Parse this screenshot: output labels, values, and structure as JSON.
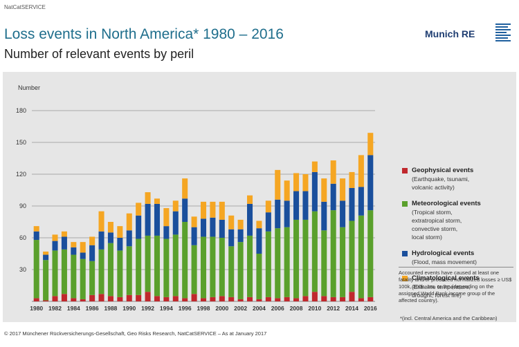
{
  "header": {
    "source_tag": "NatCatSERVICE",
    "title": "Loss events in North America* 1980 – 2016",
    "subtitle": "Number of relevant events by peril"
  },
  "logo": {
    "text": "Munich RE"
  },
  "legend": [
    {
      "name": "Geophysical events",
      "desc": "(Earthquake, tsunami,\nvolcanic activity)",
      "color": "#c0282d"
    },
    {
      "name": "Meteorological events",
      "desc": "(Tropical storm,\nextratropical storm,\nconvective storm,\nlocal storm)",
      "color": "#5aa02c"
    },
    {
      "name": "Hydrological events",
      "desc": "(Flood, mass movement)",
      "color": "#1a4f9c"
    },
    {
      "name": "Climatological events",
      "desc": "(Extreme temperature,\ndrought, forest fire)",
      "color": "#f5a623"
    }
  ],
  "note": "Accounted events have caused at least one fatality and/or produced normalized losses ≥ US$ 100k, 300k, 1m, or 3m (depending on the assigned World Bank income group of the affected country).",
  "footnote": "*(incl. Central America and the Caribbean)",
  "footer": {
    "copyright": "© 2017 Münchener Rückversicherungs-Gesellschaft, Geo Risks Research, NatCatSERVICE – As at January 2017"
  },
  "chart_data": {
    "type": "bar",
    "stacked": true,
    "ylabel": "Number",
    "ylim": [
      0,
      180
    ],
    "yticks": [
      30,
      60,
      90,
      120,
      150,
      180
    ],
    "grid": true,
    "categories": [
      "1980",
      "1981",
      "1982",
      "1983",
      "1984",
      "1985",
      "1986",
      "1987",
      "1988",
      "1989",
      "1990",
      "1991",
      "1992",
      "1993",
      "1994",
      "1995",
      "1996",
      "1997",
      "1998",
      "1999",
      "2000",
      "2001",
      "2002",
      "2003",
      "2004",
      "2005",
      "2006",
      "2007",
      "2008",
      "2009",
      "2010",
      "2011",
      "2012",
      "2013",
      "2014",
      "2015",
      "2016"
    ],
    "xtick_labels": [
      "1980",
      "1982",
      "1984",
      "1986",
      "1988",
      "1990",
      "1992",
      "1994",
      "1996",
      "1998",
      "2000",
      "2002",
      "2004",
      "2006",
      "2008",
      "2010",
      "2012",
      "2014",
      "2016"
    ],
    "series": [
      {
        "name": "Geophysical events",
        "color": "#c0282d",
        "values": [
          3,
          1,
          5,
          7,
          3,
          2,
          6,
          7,
          5,
          4,
          6,
          6,
          9,
          5,
          4,
          5,
          3,
          7,
          3,
          4,
          5,
          4,
          2,
          4,
          2,
          4,
          3,
          4,
          3,
          5,
          9,
          5,
          4,
          4,
          9,
          3,
          4
        ]
      },
      {
        "name": "Meteorological events",
        "color": "#5aa02c",
        "values": [
          55,
          38,
          43,
          42,
          41,
          38,
          32,
          42,
          50,
          44,
          46,
          53,
          53,
          57,
          55,
          58,
          72,
          46,
          58,
          57,
          55,
          48,
          54,
          58,
          43,
          62,
          66,
          66,
          74,
          72,
          76,
          62,
          82,
          66,
          67,
          78,
          82
        ]
      },
      {
        "name": "Hydrological events",
        "color": "#1a4f9c",
        "values": [
          8,
          5,
          9,
          12,
          7,
          6,
          15,
          17,
          10,
          12,
          15,
          22,
          30,
          30,
          12,
          22,
          22,
          17,
          17,
          18,
          17,
          16,
          12,
          30,
          24,
          18,
          27,
          25,
          27,
          27,
          37,
          27,
          25,
          25,
          31,
          27,
          52
        ]
      },
      {
        "name": "Climatological events",
        "color": "#f5a623",
        "values": [
          5,
          3,
          6,
          5,
          5,
          10,
          8,
          19,
          10,
          11,
          16,
          12,
          11,
          5,
          17,
          10,
          19,
          10,
          16,
          15,
          17,
          13,
          9,
          8,
          7,
          11,
          28,
          19,
          17,
          16,
          10,
          22,
          22,
          21,
          15,
          30,
          21
        ]
      }
    ]
  }
}
